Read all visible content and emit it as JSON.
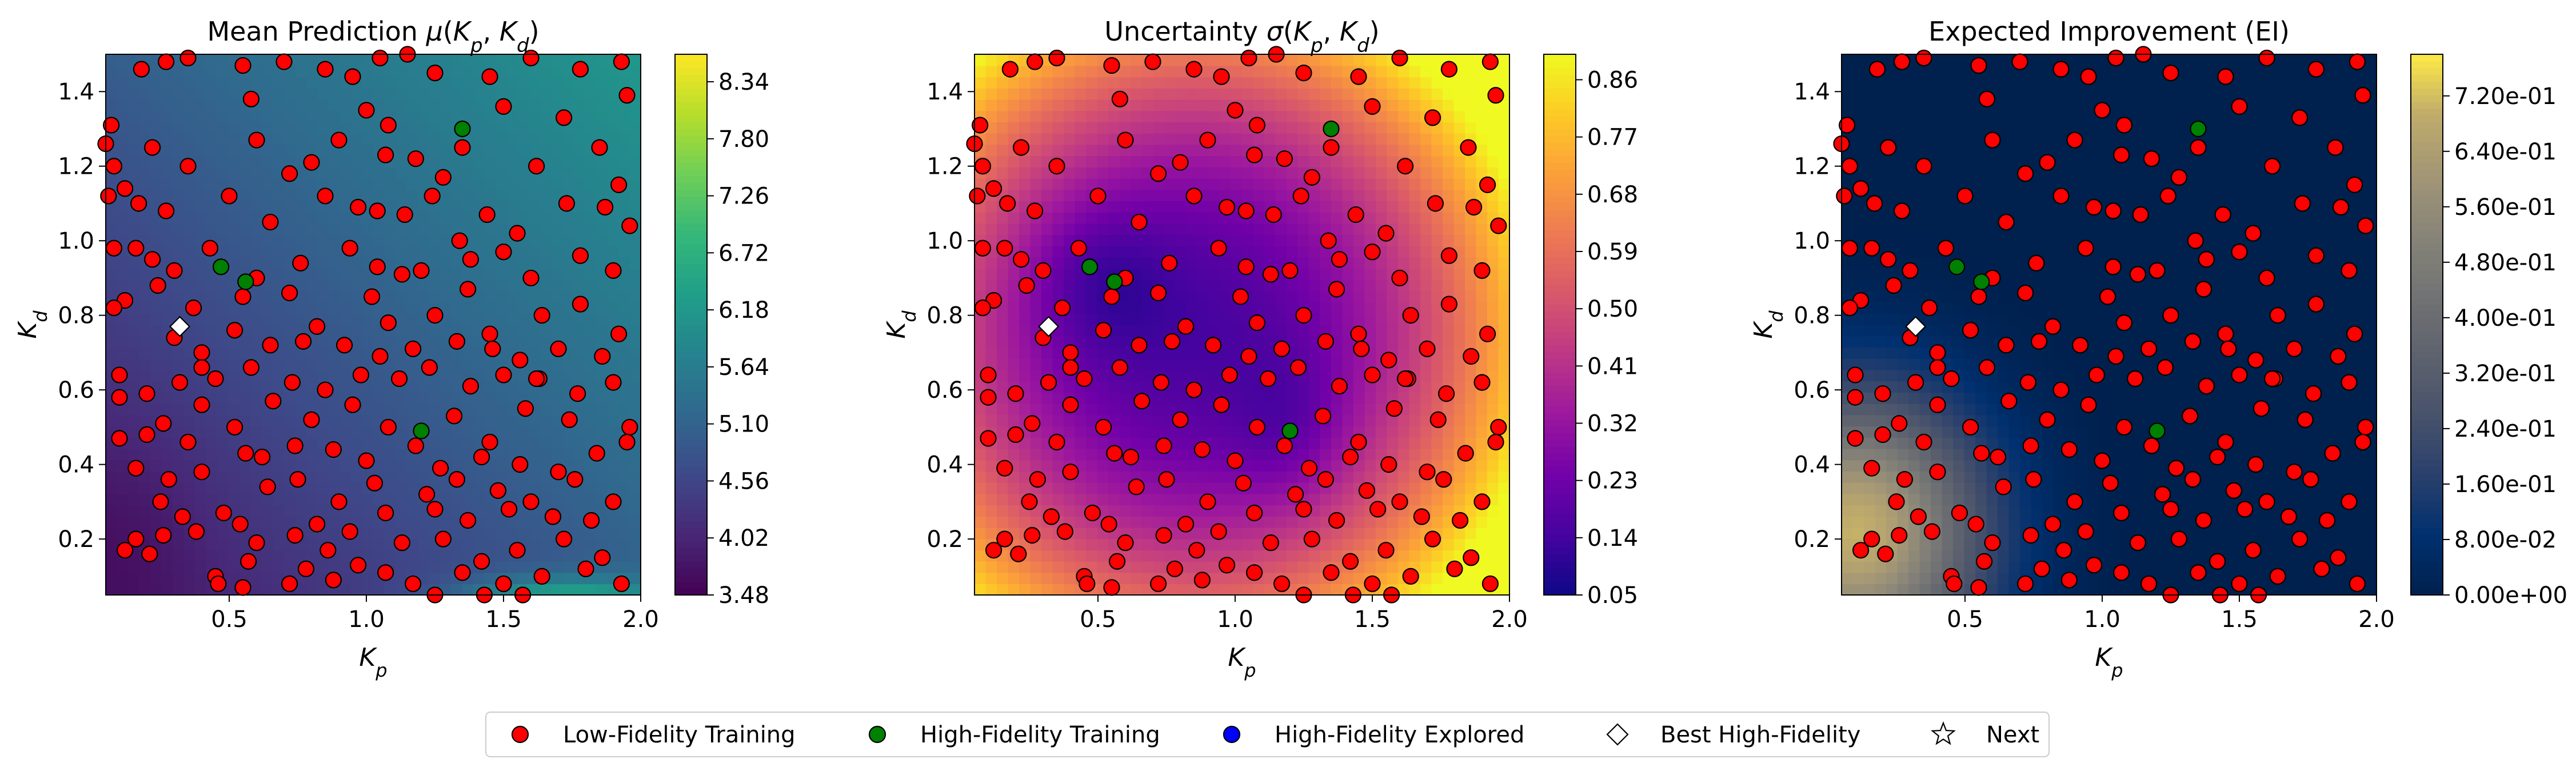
{
  "chart_data": [
    {
      "type": "heatmap",
      "title": "Mean Prediction μ(Kp, Kd)",
      "title_parts": [
        "Mean Prediction ",
        "μ",
        "(",
        "K",
        "p",
        ", ",
        "K",
        "d",
        ")"
      ],
      "xlabel": "Kp",
      "ylabel": "Kd",
      "xlim": [
        0.05,
        2.0
      ],
      "ylim": [
        0.05,
        1.5
      ],
      "xticks": [
        "0.5",
        "1.0",
        "1.5",
        "2.0"
      ],
      "yticks": [
        "0.2",
        "0.4",
        "0.6",
        "0.8",
        "1.0",
        "1.2",
        "1.4"
      ],
      "colormap": "viridis",
      "colorbar_range": [
        3.48,
        8.6
      ],
      "colorbar_ticks": [
        "3.48",
        "4.02",
        "4.56",
        "5.10",
        "5.64",
        "6.18",
        "6.72",
        "7.26",
        "7.80",
        "8.34"
      ]
    },
    {
      "type": "heatmap",
      "title": "Uncertainty σ(Kp, Kd)",
      "title_parts": [
        "Uncertainty ",
        "σ",
        "(",
        "K",
        "p",
        ", ",
        "K",
        "d",
        ")"
      ],
      "xlabel": "Kp",
      "ylabel": "Kd",
      "xlim": [
        0.05,
        2.0
      ],
      "ylim": [
        0.05,
        1.5
      ],
      "xticks": [
        "0.5",
        "1.0",
        "1.5",
        "2.0"
      ],
      "yticks": [
        "0.2",
        "0.4",
        "0.6",
        "0.8",
        "1.0",
        "1.2",
        "1.4"
      ],
      "colormap": "plasma",
      "colorbar_range": [
        0.05,
        0.9
      ],
      "colorbar_ticks": [
        "0.05",
        "0.14",
        "0.23",
        "0.32",
        "0.41",
        "0.50",
        "0.59",
        "0.68",
        "0.77",
        "0.86"
      ]
    },
    {
      "type": "heatmap",
      "title": "Expected Improvement (EI)",
      "xlabel": "Kp",
      "ylabel": "Kd",
      "xlim": [
        0.05,
        2.0
      ],
      "ylim": [
        0.05,
        1.5
      ],
      "xticks": [
        "0.5",
        "1.0",
        "1.5",
        "2.0"
      ],
      "yticks": [
        "0.2",
        "0.4",
        "0.6",
        "0.8",
        "1.0",
        "1.2",
        "1.4"
      ],
      "colormap": "cividis",
      "colorbar_range": [
        0.0,
        0.78
      ],
      "colorbar_ticks": [
        "0.00e+00",
        "8.00e-02",
        "1.60e-01",
        "2.40e-01",
        "3.20e-01",
        "4.00e-01",
        "4.80e-01",
        "5.60e-01",
        "6.40e-01",
        "7.20e-01"
      ]
    }
  ],
  "series": {
    "low_fidelity": [
      [
        0.07,
        1.31
      ],
      [
        0.05,
        1.26
      ],
      [
        0.08,
        1.2
      ],
      [
        0.18,
        1.46
      ],
      [
        0.27,
        1.48
      ],
      [
        0.35,
        1.49
      ],
      [
        0.55,
        1.47
      ],
      [
        0.7,
        1.48
      ],
      [
        0.85,
        1.46
      ],
      [
        0.95,
        1.44
      ],
      [
        1.05,
        1.49
      ],
      [
        1.15,
        1.5
      ],
      [
        1.25,
        1.45
      ],
      [
        1.45,
        1.44
      ],
      [
        1.6,
        1.49
      ],
      [
        1.78,
        1.46
      ],
      [
        1.93,
        1.48
      ],
      [
        0.12,
        1.14
      ],
      [
        0.22,
        1.25
      ],
      [
        0.35,
        1.2
      ],
      [
        0.6,
        1.27
      ],
      [
        0.72,
        1.18
      ],
      [
        0.8,
        1.21
      ],
      [
        0.9,
        1.27
      ],
      [
        1.0,
        1.35
      ],
      [
        1.08,
        1.31
      ],
      [
        1.18,
        1.22
      ],
      [
        1.28,
        1.17
      ],
      [
        1.35,
        1.25
      ],
      [
        1.5,
        1.36
      ],
      [
        1.62,
        1.2
      ],
      [
        1.72,
        1.33
      ],
      [
        1.85,
        1.25
      ],
      [
        1.95,
        1.39
      ],
      [
        0.06,
        1.12
      ],
      [
        0.17,
        1.1
      ],
      [
        0.27,
        1.08
      ],
      [
        0.5,
        1.12
      ],
      [
        0.65,
        1.05
      ],
      [
        0.85,
        1.12
      ],
      [
        0.97,
        1.09
      ],
      [
        1.04,
        1.08
      ],
      [
        1.14,
        1.07
      ],
      [
        1.24,
        1.12
      ],
      [
        1.44,
        1.07
      ],
      [
        1.55,
        1.02
      ],
      [
        1.73,
        1.1
      ],
      [
        1.87,
        1.09
      ],
      [
        1.96,
        1.04
      ],
      [
        0.08,
        0.98
      ],
      [
        0.16,
        0.98
      ],
      [
        0.22,
        0.95
      ],
      [
        0.3,
        0.92
      ],
      [
        0.43,
        0.98
      ],
      [
        0.6,
        0.9
      ],
      [
        0.76,
        0.94
      ],
      [
        0.94,
        0.98
      ],
      [
        1.04,
        0.93
      ],
      [
        1.13,
        0.91
      ],
      [
        1.2,
        0.92
      ],
      [
        1.38,
        0.95
      ],
      [
        1.5,
        0.97
      ],
      [
        1.6,
        0.9
      ],
      [
        1.78,
        0.96
      ],
      [
        1.9,
        0.92
      ],
      [
        0.12,
        0.84
      ],
      [
        0.24,
        0.88
      ],
      [
        0.37,
        0.82
      ],
      [
        0.55,
        0.85
      ],
      [
        0.72,
        0.86
      ],
      [
        0.82,
        0.77
      ],
      [
        1.02,
        0.85
      ],
      [
        1.08,
        0.78
      ],
      [
        1.25,
        0.8
      ],
      [
        1.37,
        0.87
      ],
      [
        1.45,
        0.75
      ],
      [
        1.64,
        0.8
      ],
      [
        1.78,
        0.83
      ],
      [
        1.92,
        0.75
      ],
      [
        0.08,
        0.82
      ],
      [
        0.3,
        0.74
      ],
      [
        0.4,
        0.7
      ],
      [
        0.52,
        0.76
      ],
      [
        0.65,
        0.72
      ],
      [
        0.77,
        0.73
      ],
      [
        0.92,
        0.72
      ],
      [
        1.05,
        0.69
      ],
      [
        1.17,
        0.71
      ],
      [
        1.33,
        0.73
      ],
      [
        1.46,
        0.71
      ],
      [
        1.56,
        0.68
      ],
      [
        1.7,
        0.71
      ],
      [
        1.86,
        0.69
      ],
      [
        0.1,
        0.64
      ],
      [
        0.2,
        0.59
      ],
      [
        0.32,
        0.62
      ],
      [
        0.45,
        0.63
      ],
      [
        0.58,
        0.66
      ],
      [
        0.73,
        0.62
      ],
      [
        0.85,
        0.6
      ],
      [
        0.98,
        0.64
      ],
      [
        1.12,
        0.63
      ],
      [
        1.23,
        0.66
      ],
      [
        1.38,
        0.61
      ],
      [
        1.5,
        0.64
      ],
      [
        1.63,
        0.63
      ],
      [
        1.77,
        0.59
      ],
      [
        1.9,
        0.62
      ],
      [
        0.1,
        0.58
      ],
      [
        0.26,
        0.51
      ],
      [
        0.4,
        0.56
      ],
      [
        0.52,
        0.5
      ],
      [
        0.66,
        0.57
      ],
      [
        0.8,
        0.52
      ],
      [
        0.95,
        0.56
      ],
      [
        1.08,
        0.5
      ],
      [
        1.32,
        0.53
      ],
      [
        1.45,
        0.46
      ],
      [
        1.58,
        0.55
      ],
      [
        1.74,
        0.52
      ],
      [
        1.96,
        0.5
      ],
      [
        0.1,
        0.47
      ],
      [
        0.2,
        0.48
      ],
      [
        0.35,
        0.46
      ],
      [
        0.56,
        0.43
      ],
      [
        0.62,
        0.42
      ],
      [
        0.74,
        0.45
      ],
      [
        0.88,
        0.44
      ],
      [
        1.0,
        0.41
      ],
      [
        1.18,
        0.45
      ],
      [
        1.27,
        0.39
      ],
      [
        1.42,
        0.42
      ],
      [
        1.56,
        0.4
      ],
      [
        1.7,
        0.38
      ],
      [
        1.84,
        0.43
      ],
      [
        1.95,
        0.46
      ],
      [
        0.16,
        0.39
      ],
      [
        0.28,
        0.36
      ],
      [
        0.4,
        0.38
      ],
      [
        0.64,
        0.34
      ],
      [
        0.75,
        0.36
      ],
      [
        0.9,
        0.3
      ],
      [
        1.03,
        0.35
      ],
      [
        1.22,
        0.32
      ],
      [
        1.33,
        0.36
      ],
      [
        1.48,
        0.33
      ],
      [
        1.6,
        0.3
      ],
      [
        1.76,
        0.36
      ],
      [
        1.9,
        0.3
      ],
      [
        0.25,
        0.3
      ],
      [
        0.33,
        0.26
      ],
      [
        0.48,
        0.27
      ],
      [
        0.54,
        0.24
      ],
      [
        0.82,
        0.24
      ],
      [
        0.94,
        0.22
      ],
      [
        1.07,
        0.27
      ],
      [
        1.25,
        0.28
      ],
      [
        1.37,
        0.25
      ],
      [
        1.52,
        0.28
      ],
      [
        1.68,
        0.26
      ],
      [
        1.82,
        0.25
      ],
      [
        0.16,
        0.2
      ],
      [
        0.26,
        0.21
      ],
      [
        0.38,
        0.22
      ],
      [
        0.6,
        0.19
      ],
      [
        0.74,
        0.21
      ],
      [
        0.86,
        0.17
      ],
      [
        1.13,
        0.19
      ],
      [
        1.28,
        0.2
      ],
      [
        1.42,
        0.14
      ],
      [
        1.55,
        0.17
      ],
      [
        1.72,
        0.2
      ],
      [
        1.86,
        0.15
      ],
      [
        0.12,
        0.17
      ],
      [
        0.21,
        0.16
      ],
      [
        0.45,
        0.1
      ],
      [
        0.57,
        0.14
      ],
      [
        0.78,
        0.12
      ],
      [
        0.97,
        0.13
      ],
      [
        1.07,
        0.11
      ],
      [
        1.17,
        0.08
      ],
      [
        1.35,
        0.11
      ],
      [
        1.5,
        0.08
      ],
      [
        1.64,
        0.1
      ],
      [
        1.8,
        0.12
      ],
      [
        1.93,
        0.08
      ],
      [
        0.46,
        0.08
      ],
      [
        0.55,
        0.07
      ],
      [
        0.72,
        0.08
      ],
      [
        0.88,
        0.09
      ],
      [
        1.25,
        0.05
      ],
      [
        1.43,
        0.05
      ],
      [
        1.57,
        0.05
      ],
      [
        1.62,
        0.63
      ],
      [
        1.34,
        1.0
      ],
      [
        1.92,
        1.15
      ],
      [
        0.58,
        1.38
      ],
      [
        1.07,
        1.23
      ],
      [
        0.4,
        0.66
      ]
    ],
    "high_fidelity": [
      [
        0.47,
        0.93
      ],
      [
        0.56,
        0.89
      ],
      [
        1.2,
        0.49
      ],
      [
        1.35,
        1.3
      ]
    ],
    "best": [
      0.32,
      0.77
    ]
  },
  "legend": {
    "placement": "bottom-center",
    "items": [
      {
        "label": "Low-Fidelity Training",
        "marker": "circle",
        "color": "#ff0000"
      },
      {
        "label": "High-Fidelity Training",
        "marker": "circle",
        "color": "#008000"
      },
      {
        "label": "High-Fidelity Explored",
        "marker": "circle",
        "color": "#0000ff"
      },
      {
        "label": "Best High-Fidelity",
        "marker": "diamond",
        "color": "#ffffff"
      },
      {
        "label": "Next",
        "marker": "star",
        "color": "#ffffff"
      }
    ]
  }
}
